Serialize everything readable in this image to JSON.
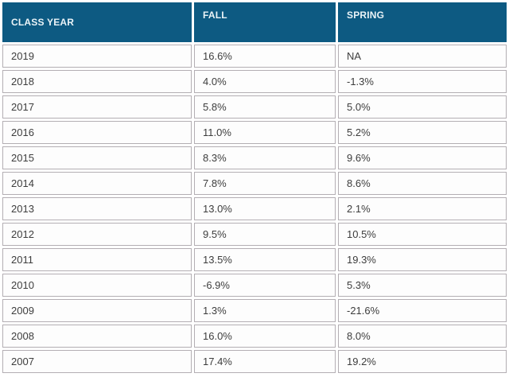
{
  "table": {
    "headers": {
      "class_year": "CLASS YEAR",
      "fall": "FALL",
      "spring": "SPRING"
    },
    "rows": [
      {
        "year": "2019",
        "fall": "16.6%",
        "spring": "NA"
      },
      {
        "year": "2018",
        "fall": "4.0%",
        "spring": "-1.3%"
      },
      {
        "year": "2017",
        "fall": "5.8%",
        "spring": "5.0%"
      },
      {
        "year": "2016",
        "fall": "11.0%",
        "spring": "5.2%"
      },
      {
        "year": "2015",
        "fall": "8.3%",
        "spring": "9.6%"
      },
      {
        "year": "2014",
        "fall": "7.8%",
        "spring": "8.6%"
      },
      {
        "year": "2013",
        "fall": "13.0%",
        "spring": "2.1%"
      },
      {
        "year": "2012",
        "fall": "9.5%",
        "spring": "10.5%"
      },
      {
        "year": "2011",
        "fall": "13.5%",
        "spring": "19.3%"
      },
      {
        "year": "2010",
        "fall": "-6.9%",
        "spring": "5.3%"
      },
      {
        "year": "2009",
        "fall": "1.3%",
        "spring": "-21.6%"
      },
      {
        "year": "2008",
        "fall": "16.0%",
        "spring": "8.0%"
      },
      {
        "year": "2007",
        "fall": "17.4%",
        "spring": "19.2%"
      }
    ]
  },
  "colors": {
    "header_bg": "#0d5a82",
    "header_text": "#eaf3f7",
    "cell_border": "#b3aeb3",
    "body_text": "#3d3d3d"
  },
  "chart_data": {
    "type": "table",
    "categories": [
      2019,
      2018,
      2017,
      2016,
      2015,
      2014,
      2013,
      2012,
      2011,
      2010,
      2009,
      2008,
      2007
    ],
    "category_label": "CLASS YEAR",
    "series": [
      {
        "name": "FALL",
        "values": [
          16.6,
          4.0,
          5.8,
          11.0,
          8.3,
          7.8,
          13.0,
          9.5,
          13.5,
          -6.9,
          1.3,
          16.0,
          17.4
        ]
      },
      {
        "name": "SPRING",
        "values": [
          null,
          -1.3,
          5.0,
          5.2,
          9.6,
          8.6,
          2.1,
          10.5,
          19.3,
          5.3,
          -21.6,
          8.0,
          19.2
        ]
      }
    ],
    "units": "percent",
    "na_text": "NA"
  }
}
